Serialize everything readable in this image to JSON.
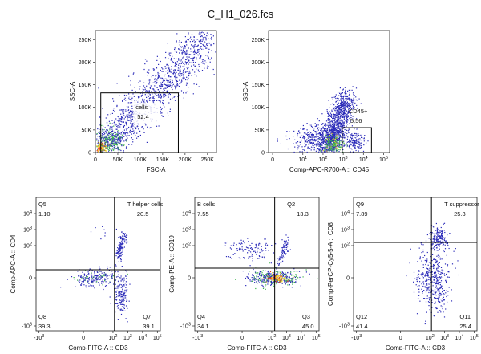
{
  "figure_title": "C_H1_026.fcs",
  "colors": {
    "density_low": "#2a2ab8",
    "density_mid": "#3cb44b",
    "density_high": "#f5d328",
    "density_peak": "#e03a1a",
    "gate": "#000000"
  },
  "chart_data": [
    {
      "id": "p1",
      "type": "scatter",
      "xlabel": "FSC-A",
      "ylabel": "SSC-A",
      "xlim": [
        0,
        270000
      ],
      "ylim": [
        0,
        270000
      ],
      "x_ticks": [
        {
          "v": 0,
          "label": "0"
        },
        {
          "v": 50000,
          "label": "50K"
        },
        {
          "v": 100000,
          "label": "100K"
        },
        {
          "v": 150000,
          "label": "150K"
        },
        {
          "v": 200000,
          "label": "200K"
        },
        {
          "v": 250000,
          "label": "250K"
        }
      ],
      "y_ticks": [
        {
          "v": 0,
          "label": "0"
        },
        {
          "v": 50000,
          "label": "50K"
        },
        {
          "v": 100000,
          "label": "100K"
        },
        {
          "v": 150000,
          "label": "150K"
        },
        {
          "v": 200000,
          "label": "200K"
        },
        {
          "v": 250000,
          "label": "250K"
        }
      ],
      "gates": [
        {
          "name": "cells",
          "value": "52.4",
          "x": [
            12000,
            185000
          ],
          "y": [
            0,
            132000
          ]
        }
      ]
    },
    {
      "id": "p2",
      "type": "scatter",
      "xlabel": "Comp-APC-R700-A :: CD45",
      "ylabel": "SSC-A",
      "xlim": [
        -0.7,
        5.3
      ],
      "ylim": [
        0,
        270000
      ],
      "x_ticks": [
        {
          "v": -0.5,
          "label": "0"
        },
        {
          "v": 1,
          "label": "10^1"
        },
        {
          "v": 2,
          "label": "10^2"
        },
        {
          "v": 3,
          "label": "10^3"
        },
        {
          "v": 4,
          "label": "10^4"
        },
        {
          "v": 5,
          "label": "10^5"
        }
      ],
      "y_ticks": [
        {
          "v": 0,
          "label": "0"
        },
        {
          "v": 50000,
          "label": "50K"
        },
        {
          "v": 100000,
          "label": "100K"
        },
        {
          "v": 150000,
          "label": "150K"
        },
        {
          "v": 200000,
          "label": "200K"
        },
        {
          "v": 250000,
          "label": "250K"
        }
      ],
      "gates": [
        {
          "name": "CD45+",
          "value": "5.56",
          "x": [
            2.95,
            4.4
          ],
          "y": [
            0,
            55000
          ]
        }
      ]
    },
    {
      "id": "p3",
      "type": "quadrant_scatter",
      "xlabel": "Comp-FITC-A :: CD3",
      "ylabel": "Comp-APC-A :: CD4",
      "xlim": [
        -3.2,
        5.2
      ],
      "ylim": [
        -3.3,
        5.0
      ],
      "divider": [
        2.1,
        0.5
      ],
      "x_ticks": [
        {
          "v": -3,
          "label": "-10^3"
        },
        {
          "v": 0,
          "label": "0"
        },
        {
          "v": 2,
          "label": "10^2"
        },
        {
          "v": 3,
          "label": "10^3"
        },
        {
          "v": 4,
          "label": "10^4"
        },
        {
          "v": 5,
          "label": "10^5"
        }
      ],
      "y_ticks": [
        {
          "v": -3,
          "label": "-10^3"
        },
        {
          "v": 0,
          "label": "0"
        },
        {
          "v": 2,
          "label": "10^2"
        },
        {
          "v": 3,
          "label": "10^3"
        },
        {
          "v": 4,
          "label": "10^4"
        }
      ],
      "quadrants": {
        "ul": {
          "name": "Q5",
          "value": "1.10"
        },
        "ur": {
          "name": "T helper cells",
          "value": "20.5"
        },
        "ll": {
          "name": "Q8",
          "value": "39.3"
        },
        "lr": {
          "name": "Q7",
          "value": "39.1"
        }
      }
    },
    {
      "id": "p4",
      "type": "quadrant_scatter",
      "xlabel": "Comp-FITC-A :: CD3",
      "ylabel": "Comp-PE-A :: CD19",
      "xlim": [
        -3.2,
        5.2
      ],
      "ylim": [
        -3.3,
        5.0
      ],
      "divider": [
        2.2,
        0.6
      ],
      "x_ticks": [
        {
          "v": -3,
          "label": "-10^3"
        },
        {
          "v": 0,
          "label": "0"
        },
        {
          "v": 2,
          "label": "10^2"
        },
        {
          "v": 3,
          "label": "10^3"
        },
        {
          "v": 4,
          "label": "10^4"
        },
        {
          "v": 5,
          "label": "10^5"
        }
      ],
      "y_ticks": [
        {
          "v": -3,
          "label": "-10^3"
        },
        {
          "v": 0,
          "label": "0"
        },
        {
          "v": 2,
          "label": "10^2"
        },
        {
          "v": 3,
          "label": "10^3"
        },
        {
          "v": 4,
          "label": "10^4"
        }
      ],
      "quadrants": {
        "ul": {
          "name": "B cells",
          "value": "7.55"
        },
        "ur": {
          "name": "Q2",
          "value": "13.3"
        },
        "ll": {
          "name": "Q4",
          "value": "34.1"
        },
        "lr": {
          "name": "Q3",
          "value": "45.0"
        }
      }
    },
    {
      "id": "p5",
      "type": "quadrant_scatter",
      "xlabel": "Comp-FITC-A :: CD3",
      "ylabel": "Comp-PerCP-Cy5-5-A :: CD8",
      "xlim": [
        -3.2,
        5.2
      ],
      "ylim": [
        -3.3,
        5.0
      ],
      "divider": [
        2.1,
        2.2
      ],
      "x_ticks": [
        {
          "v": -3,
          "label": "-10^3"
        },
        {
          "v": 0,
          "label": "0"
        },
        {
          "v": 2,
          "label": "10^2"
        },
        {
          "v": 3,
          "label": "10^3"
        },
        {
          "v": 4,
          "label": "10^4"
        },
        {
          "v": 5,
          "label": "10^5"
        }
      ],
      "y_ticks": [
        {
          "v": -3,
          "label": "-10^3"
        },
        {
          "v": 0,
          "label": "0"
        },
        {
          "v": 2,
          "label": "10^2"
        },
        {
          "v": 3,
          "label": "10^3"
        },
        {
          "v": 4,
          "label": "10^4"
        }
      ],
      "quadrants": {
        "ul": {
          "name": "Q9",
          "value": "7.89"
        },
        "ur": {
          "name": "T suppressor cells",
          "value": "25.3"
        },
        "ll": {
          "name": "Q12",
          "value": "41.4"
        },
        "lr": {
          "name": "Q11",
          "value": "25.4"
        }
      }
    }
  ]
}
